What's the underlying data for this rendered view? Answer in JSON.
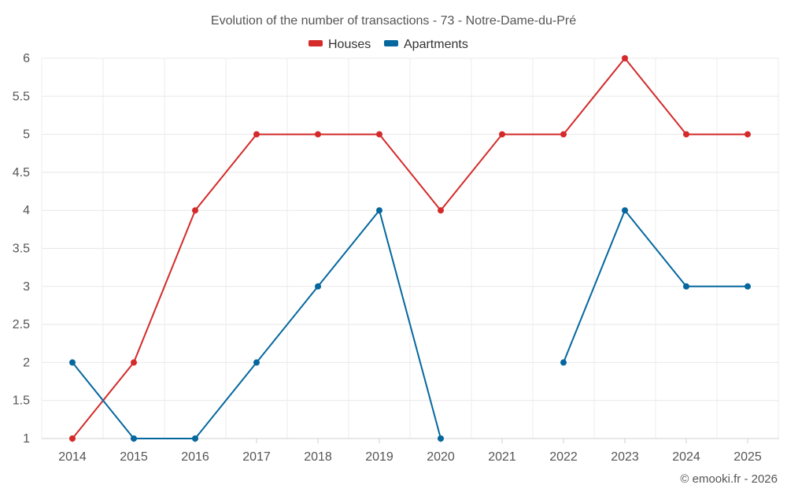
{
  "chart_data": {
    "type": "line",
    "title": "Evolution of the number of transactions - 73 - Notre-Dame-du-Pré",
    "xlabel": "",
    "ylabel": "",
    "categories": [
      "2014",
      "2015",
      "2016",
      "2017",
      "2018",
      "2019",
      "2020",
      "2021",
      "2022",
      "2023",
      "2024",
      "2025"
    ],
    "yticks": [
      1,
      1.5,
      2,
      2.5,
      3,
      3.5,
      4,
      4.5,
      5,
      5.5,
      6
    ],
    "ytick_labels": [
      "1",
      "1.5",
      "2",
      "2.5",
      "3",
      "3.5",
      "4",
      "4.5",
      "5",
      "5.5",
      "6"
    ],
    "ylim": [
      1,
      6
    ],
    "grid": true,
    "legend_position": "top-center",
    "series": [
      {
        "name": "Houses",
        "color": "#d42a2a",
        "values": [
          1,
          2,
          4,
          5,
          5,
          5,
          4,
          5,
          5,
          6,
          5,
          5
        ]
      },
      {
        "name": "Apartments",
        "color": "#05679e",
        "values": [
          2,
          1,
          1,
          2,
          3,
          4,
          1,
          null,
          2,
          4,
          3,
          3
        ]
      }
    ]
  },
  "credit": "© emooki.fr - 2026"
}
